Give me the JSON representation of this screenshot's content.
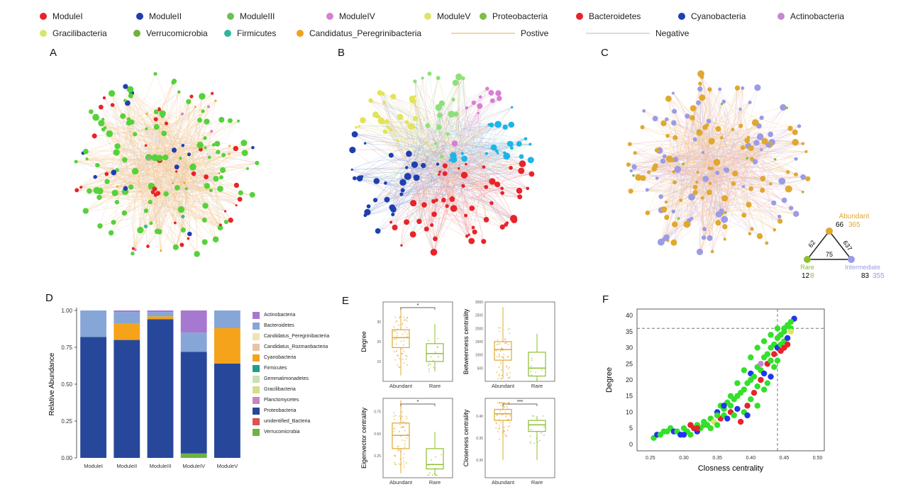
{
  "legend": {
    "modules": [
      {
        "name": "ModuleI",
        "color": "#e8232a"
      },
      {
        "name": "ModuleII",
        "color": "#1f3fb0"
      },
      {
        "name": "ModuleIII",
        "color": "#6cbf55"
      },
      {
        "name": "ModuleIV",
        "color": "#d77fd3"
      },
      {
        "name": "ModuleV",
        "color": "#dfe36a"
      }
    ],
    "taxa": [
      {
        "name": "Proteobacteria",
        "color": "#7bc043"
      },
      {
        "name": "Bacteroidetes",
        "color": "#e8232a"
      },
      {
        "name": "Cyanobacteria",
        "color": "#1f3fb0"
      },
      {
        "name": "Actinobacteria",
        "color": "#c887d2"
      },
      {
        "name": "Gracilibacteria",
        "color": "#d8e56e"
      },
      {
        "name": "Verrucomicrobia",
        "color": "#6cb33f"
      },
      {
        "name": "Firmicutes",
        "color": "#2cb89a"
      },
      {
        "name": "Candidatus_Peregrinibacteria",
        "color": "#f0a21f"
      }
    ],
    "edges": [
      {
        "name": "Postive",
        "color": "#f5d7a6"
      },
      {
        "name": "Negative",
        "color": "#d7dce8"
      }
    ]
  },
  "panels": {
    "A": "A",
    "B": "B",
    "C": "C",
    "D": "D",
    "E": "E",
    "F": "F"
  },
  "triangle": {
    "abundant_label": "Abundant",
    "rare_label": "Rare",
    "intermediate_label": "Intermediate",
    "abundant_a": "66",
    "abundant_b": "365",
    "rare_a": "12",
    "rare_b": "8",
    "inter_a": "83",
    "inter_b": "355",
    "edge_left": "62",
    "edge_right": "637",
    "edge_bottom": "75",
    "abundant_color": "#e0a830",
    "rare_color": "#8dbf2f",
    "inter_color": "#9b9be6"
  },
  "chart_data": [
    {
      "panel": "D",
      "type": "bar",
      "stacked": true,
      "categories": [
        "ModuleI",
        "ModuleII",
        "ModuleIII",
        "ModuleIV",
        "ModuleV"
      ],
      "ylabel": "Relative Abundance",
      "ylim": [
        0,
        1
      ],
      "yticks": [
        "0.00",
        "0.25",
        "0.50",
        "0.75",
        "1.00"
      ],
      "series": [
        {
          "name": "Verrucomicrobia",
          "color": "#6cb33f",
          "values": [
            0,
            0,
            0,
            0.03,
            0
          ]
        },
        {
          "name": "unidentified_Bacteria",
          "color": "#d9534f",
          "values": [
            0,
            0,
            0,
            0,
            0
          ]
        },
        {
          "name": "Proteobacteria",
          "color": "#27479a",
          "values": [
            0.82,
            0.8,
            0.94,
            0.69,
            0.64
          ]
        },
        {
          "name": "Planctomycetes",
          "color": "#c886c1",
          "values": [
            0,
            0,
            0,
            0,
            0
          ]
        },
        {
          "name": "Gracilibacteria",
          "color": "#d7dc8a",
          "values": [
            0,
            0,
            0,
            0,
            0
          ]
        },
        {
          "name": "Gemmatimonadetes",
          "color": "#c9dfb6",
          "values": [
            0,
            0,
            0,
            0,
            0
          ]
        },
        {
          "name": "Firmicutes",
          "color": "#1f9e89",
          "values": [
            0,
            0,
            0,
            0,
            0
          ]
        },
        {
          "name": "Cyanobacteria",
          "color": "#f5a31a",
          "values": [
            0,
            0.11,
            0.02,
            0,
            0.24
          ]
        },
        {
          "name": "Candidatus_Rozmanbacteria",
          "color": "#e7c4a8",
          "values": [
            0,
            0,
            0,
            0,
            0
          ]
        },
        {
          "name": "Candidatus_Peregrinibacteria",
          "color": "#f1e3b0",
          "values": [
            0,
            0,
            0,
            0,
            0
          ]
        },
        {
          "name": "Bacteroidetes",
          "color": "#87a6d8",
          "values": [
            0.18,
            0.08,
            0.03,
            0.13,
            0.12
          ]
        },
        {
          "name": "Actinobacteria",
          "color": "#a778cf",
          "values": [
            0,
            0.01,
            0.01,
            0.15,
            0
          ]
        }
      ],
      "legend_order": [
        "Actinobacteria",
        "Bacteroidetes",
        "Candidatus_Peregrinibacteria",
        "Candidatus_Rozmanbacteria",
        "Cyanobacteria",
        "Firmicutes",
        "Gemmatimonadetes",
        "Gracilibacteria",
        "Planctomycetes",
        "Proteobacteria",
        "unidentified_Bacteria",
        "Verrucomicrobia"
      ]
    },
    {
      "panel": "E1",
      "type": "box",
      "ylabel": "Degree",
      "categories": [
        "Abundant",
        "Rare"
      ],
      "colors": [
        "#e0a830",
        "#8dbf2f"
      ],
      "ylim": [
        0,
        40
      ],
      "yticks": [
        "10",
        "20",
        "30"
      ],
      "significance": "*",
      "boxes": [
        {
          "min": 3,
          "q1": 17,
          "median": 22,
          "q3": 26,
          "max": 37
        },
        {
          "min": 5,
          "q1": 10,
          "median": 14,
          "q3": 19,
          "max": 29
        }
      ]
    },
    {
      "panel": "E2",
      "type": "box",
      "ylabel": "Betweenness centrality",
      "categories": [
        "Abundant",
        "Rare"
      ],
      "colors": [
        "#e0a830",
        "#8dbf2f"
      ],
      "ylim": [
        0,
        3000
      ],
      "yticks": [
        "500",
        "1000",
        "1500",
        "2000",
        "2500",
        "3000"
      ],
      "significance": "",
      "boxes": [
        {
          "min": 100,
          "q1": 800,
          "median": 1200,
          "q3": 1500,
          "max": 2800
        },
        {
          "min": 0,
          "q1": 200,
          "median": 500,
          "q3": 1100,
          "max": 1800
        }
      ]
    },
    {
      "panel": "E3",
      "type": "box",
      "ylabel": "Eigenvector centrality",
      "categories": [
        "Abundant",
        "Rare"
      ],
      "colors": [
        "#e0a830",
        "#8dbf2f"
      ],
      "ylim": [
        0,
        0.9
      ],
      "yticks": [
        "0.25",
        "0.50",
        "0.75"
      ],
      "significance": "*",
      "boxes": [
        {
          "min": 0.05,
          "q1": 0.33,
          "median": 0.48,
          "q3": 0.62,
          "max": 0.88
        },
        {
          "min": 0.03,
          "q1": 0.1,
          "median": 0.15,
          "q3": 0.33,
          "max": 0.52
        }
      ]
    },
    {
      "panel": "E4",
      "type": "box",
      "ylabel": "Closeness centrality",
      "categories": [
        "Abundant",
        "Rare"
      ],
      "colors": [
        "#e0a830",
        "#8dbf2f"
      ],
      "ylim": [
        0.26,
        0.44
      ],
      "yticks": [
        "0.30",
        "0.35",
        "0.40"
      ],
      "significance": "***",
      "boxes": [
        {
          "min": 0.3,
          "q1": 0.39,
          "median": 0.405,
          "q3": 0.415,
          "max": 0.43
        },
        {
          "min": 0.3,
          "q1": 0.365,
          "median": 0.38,
          "q3": 0.39,
          "max": 0.4
        }
      ]
    },
    {
      "panel": "F",
      "type": "scatter",
      "xlabel": "Closness centrality",
      "ylabel": "Degree",
      "xlim": [
        0.23,
        0.51
      ],
      "ylim": [
        -2,
        42
      ],
      "xticks": [
        0.25,
        0.3,
        0.35,
        0.4,
        0.45,
        0.5
      ],
      "xtick_labels": [
        "0.25",
        "0.30",
        "0.35",
        "0.40",
        "0.45",
        "0.50"
      ],
      "yticks": [
        0,
        5,
        10,
        15,
        20,
        25,
        30,
        35,
        40
      ],
      "ytick_labels": [
        "0",
        "5",
        "10",
        "15",
        "20",
        "25",
        "30",
        "35",
        "40"
      ],
      "hline": 36,
      "vline": 0.44,
      "colors": {
        "g": "#33e02a",
        "r": "#e8232a",
        "b": "#2035ee",
        "p": "#c887d2",
        "y": "#dfe36a"
      },
      "points": [
        [
          0.255,
          2,
          "g"
        ],
        [
          0.26,
          3,
          "b"
        ],
        [
          0.265,
          3,
          "g"
        ],
        [
          0.27,
          4,
          "g"
        ],
        [
          0.275,
          4,
          "g"
        ],
        [
          0.28,
          5,
          "g"
        ],
        [
          0.285,
          4,
          "b"
        ],
        [
          0.29,
          4,
          "g"
        ],
        [
          0.295,
          3,
          "b"
        ],
        [
          0.3,
          5,
          "g"
        ],
        [
          0.305,
          4,
          "g"
        ],
        [
          0.31,
          6,
          "r"
        ],
        [
          0.31,
          3,
          "g"
        ],
        [
          0.315,
          5,
          "r"
        ],
        [
          0.32,
          4,
          "b"
        ],
        [
          0.32,
          6,
          "g"
        ],
        [
          0.325,
          5,
          "g"
        ],
        [
          0.33,
          7,
          "g"
        ],
        [
          0.335,
          6,
          "g"
        ],
        [
          0.34,
          5,
          "g"
        ],
        [
          0.34,
          8,
          "g"
        ],
        [
          0.345,
          7,
          "y"
        ],
        [
          0.35,
          10,
          "b"
        ],
        [
          0.35,
          6,
          "g"
        ],
        [
          0.355,
          12,
          "g"
        ],
        [
          0.355,
          8,
          "r"
        ],
        [
          0.36,
          11,
          "g"
        ],
        [
          0.36,
          9,
          "g"
        ],
        [
          0.365,
          13,
          "g"
        ],
        [
          0.365,
          8,
          "b"
        ],
        [
          0.37,
          12,
          "g"
        ],
        [
          0.37,
          10,
          "r"
        ],
        [
          0.375,
          14,
          "g"
        ],
        [
          0.375,
          9,
          "g"
        ],
        [
          0.38,
          15,
          "g"
        ],
        [
          0.38,
          11,
          "b"
        ],
        [
          0.385,
          16,
          "g"
        ],
        [
          0.385,
          7,
          "r"
        ],
        [
          0.39,
          17,
          "g"
        ],
        [
          0.39,
          10,
          "g"
        ],
        [
          0.395,
          19,
          "g"
        ],
        [
          0.395,
          12,
          "r"
        ],
        [
          0.395,
          9,
          "b"
        ],
        [
          0.4,
          20,
          "g"
        ],
        [
          0.4,
          14,
          "g"
        ],
        [
          0.4,
          22,
          "b"
        ],
        [
          0.405,
          21,
          "g"
        ],
        [
          0.405,
          16,
          "r"
        ],
        [
          0.41,
          24,
          "g"
        ],
        [
          0.41,
          18,
          "g"
        ],
        [
          0.41,
          12,
          "g"
        ],
        [
          0.415,
          25,
          "p"
        ],
        [
          0.415,
          20,
          "r"
        ],
        [
          0.415,
          23,
          "g"
        ],
        [
          0.42,
          27,
          "g"
        ],
        [
          0.42,
          22,
          "b"
        ],
        [
          0.42,
          17,
          "g"
        ],
        [
          0.425,
          28,
          "g"
        ],
        [
          0.425,
          25,
          "r"
        ],
        [
          0.425,
          19,
          "g"
        ],
        [
          0.43,
          30,
          "g"
        ],
        [
          0.43,
          26,
          "g"
        ],
        [
          0.43,
          21,
          "b"
        ],
        [
          0.435,
          31,
          "g"
        ],
        [
          0.435,
          28,
          "r"
        ],
        [
          0.435,
          24,
          "g"
        ],
        [
          0.44,
          33,
          "g"
        ],
        [
          0.44,
          30,
          "b"
        ],
        [
          0.44,
          26,
          "g"
        ],
        [
          0.445,
          34,
          "g"
        ],
        [
          0.445,
          29,
          "r"
        ],
        [
          0.445,
          31,
          "g"
        ],
        [
          0.45,
          35,
          "g"
        ],
        [
          0.45,
          32,
          "g"
        ],
        [
          0.45,
          30,
          "r"
        ],
        [
          0.455,
          37,
          "g"
        ],
        [
          0.455,
          33,
          "b"
        ],
        [
          0.455,
          31,
          "r"
        ],
        [
          0.46,
          36,
          "g"
        ],
        [
          0.46,
          35,
          "y"
        ],
        [
          0.465,
          39,
          "b"
        ],
        [
          0.46,
          38,
          "g"
        ],
        [
          0.45,
          36,
          "g"
        ],
        [
          0.44,
          36,
          "g"
        ],
        [
          0.43,
          34,
          "g"
        ],
        [
          0.42,
          32,
          "g"
        ],
        [
          0.41,
          30,
          "g"
        ],
        [
          0.4,
          27,
          "g"
        ],
        [
          0.39,
          23,
          "g"
        ],
        [
          0.38,
          19,
          "g"
        ],
        [
          0.37,
          15,
          "g"
        ],
        [
          0.36,
          12,
          "b"
        ],
        [
          0.35,
          9,
          "g"
        ],
        [
          0.33,
          6,
          "g"
        ],
        [
          0.32,
          5,
          "r"
        ],
        [
          0.3,
          3,
          "b"
        ]
      ]
    }
  ]
}
